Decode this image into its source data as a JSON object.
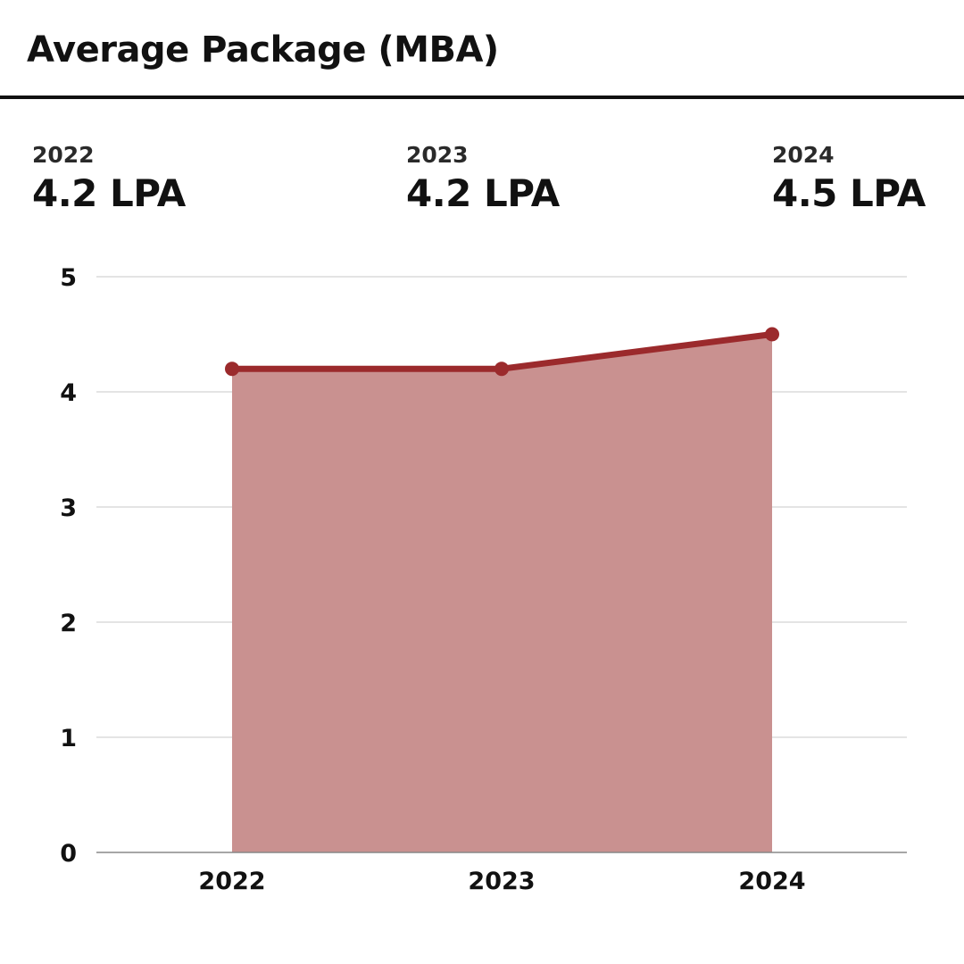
{
  "title": "Average Package (MBA)",
  "stats": [
    {
      "year": "2022",
      "value": "4.2 LPA"
    },
    {
      "year": "2023",
      "value": "4.2 LPA"
    },
    {
      "year": "2024",
      "value": "4.5 LPA"
    }
  ],
  "colors": {
    "line": "#9b2a2c",
    "fill": "#c99190",
    "grid": "#d4d4d4",
    "axis": "#888888"
  },
  "chart_data": {
    "type": "area",
    "title": "Average Package (MBA)",
    "xlabel": "",
    "ylabel": "",
    "categories": [
      "2022",
      "2023",
      "2024"
    ],
    "values": [
      4.2,
      4.2,
      4.5
    ],
    "ylim": [
      0,
      5
    ],
    "yticks": [
      "0",
      "1",
      "2",
      "3",
      "4",
      "5"
    ],
    "grid": true,
    "legend": "none"
  }
}
